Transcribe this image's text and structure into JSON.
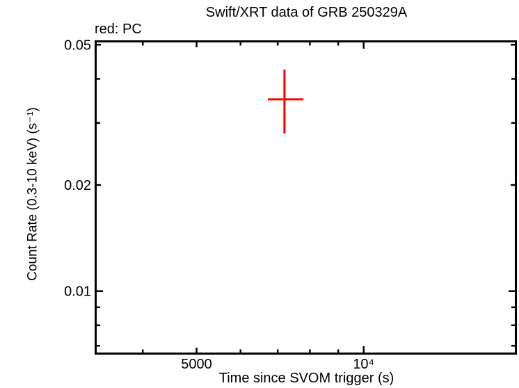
{
  "figure": {
    "background_color": "#ffffff",
    "axis_color": "#000000"
  },
  "legend": {
    "text": "red: PC",
    "mode": "PC",
    "mode_color": "#ff0000"
  },
  "chart_data": {
    "type": "scatter",
    "title": "Swift/XRT data of GRB 250329A",
    "xlabel": "Time since SVOM trigger (s)",
    "ylabel": "Count Rate (0.3-10 keV) (s⁻¹)",
    "grid": false,
    "x_axis": {
      "scale": "log",
      "min": 3290,
      "max": 18800,
      "ticks": [
        {
          "value": 4000
        },
        {
          "value": 5000,
          "label": "5000"
        },
        {
          "value": 6000
        },
        {
          "value": 7000
        },
        {
          "value": 8000
        },
        {
          "value": 9000
        },
        {
          "value": 10000,
          "label": "10⁴",
          "major": true
        }
      ]
    },
    "y_axis": {
      "scale": "log",
      "min": 0.00665,
      "max": 0.0511,
      "ticks": [
        {
          "value": 0.05,
          "label": "0.05"
        },
        {
          "value": 0.04
        },
        {
          "value": 0.03
        },
        {
          "value": 0.02,
          "label": "0.02"
        },
        {
          "value": 0.01,
          "label": "0.01",
          "major": true
        },
        {
          "value": 0.009
        },
        {
          "value": 0.008
        },
        {
          "value": 0.007
        }
      ]
    },
    "series": [
      {
        "name": "PC",
        "color": "#ff0000",
        "marker": "plus-with-error-bars",
        "points": [
          {
            "x": 7200,
            "x_low": 6720,
            "x_high": 7790,
            "y": 0.035,
            "y_low": 0.028,
            "y_high": 0.0425
          }
        ]
      }
    ]
  }
}
